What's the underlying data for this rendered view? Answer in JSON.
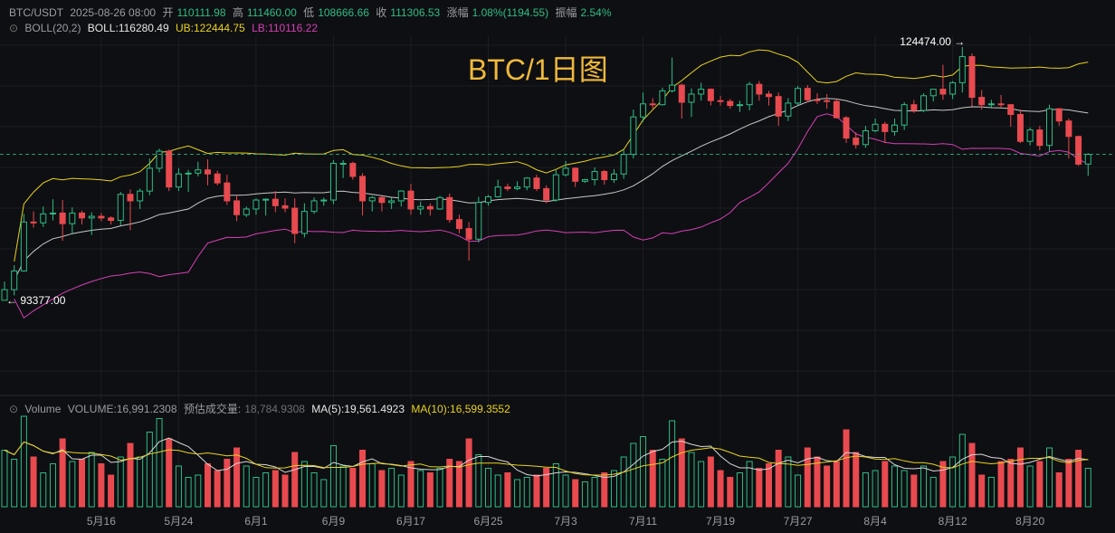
{
  "chart_data": {
    "type": "candlestick",
    "header": {
      "symbol": "BTC/USDT",
      "time": "2025-08-26 08:00",
      "open_label": "开",
      "open": "110111.98",
      "high_label": "高",
      "high": "111460.00",
      "low_label": "低",
      "low": "108666.66",
      "close_label": "收",
      "close": "111306.53",
      "change_label": "涨幅",
      "change": "1.08%(1194.55)",
      "amplitude_label": "振幅",
      "amplitude": "2.54%"
    },
    "boll_header": {
      "name": "BOLL(20,2)",
      "mid": "BOLL:116280.49",
      "ub": "UB:122444.75",
      "lb": "LB:110116.22",
      "period": 20,
      "width": 2,
      "mid_color": "#c8c8c8",
      "ub_color": "#e8d21d",
      "lb_color": "#d63fb7"
    },
    "volume_header": {
      "name": "Volume",
      "volume": "VOLUME:16,991.2308",
      "estimate_label": "预估成交量:",
      "estimate": "18,784.9308",
      "ma5": "MA(5):19,561.4923",
      "ma10": "MA(10):16,599.3552",
      "ma5_period": 5,
      "ma10_period": 10,
      "ma5_color": "#d8d8d8",
      "ma10_color": "#e8d21d"
    },
    "watermark": "BTC/1日图",
    "annotations": {
      "high": "124474.00 →",
      "low": "← 93377.00"
    },
    "up_color": "#2ebd85",
    "down_color": "#e84a4f",
    "categories": [
      null,
      null,
      null,
      null,
      null,
      null,
      null,
      null,
      null,
      null,
      "5月16",
      null,
      null,
      null,
      null,
      null,
      null,
      null,
      "5月24",
      null,
      null,
      null,
      null,
      null,
      null,
      null,
      "6月1",
      null,
      null,
      null,
      null,
      null,
      null,
      null,
      "6月9",
      null,
      null,
      null,
      null,
      null,
      null,
      null,
      "6月17",
      null,
      null,
      null,
      null,
      null,
      null,
      null,
      "6月25",
      null,
      null,
      null,
      null,
      null,
      null,
      null,
      "7月3",
      null,
      null,
      null,
      null,
      null,
      null,
      null,
      "7月11",
      null,
      null,
      null,
      null,
      null,
      null,
      null,
      "7月19",
      null,
      null,
      null,
      null,
      null,
      null,
      null,
      "7月27",
      null,
      null,
      null,
      null,
      null,
      null,
      null,
      "8月4",
      null,
      null,
      null,
      null,
      null,
      null,
      null,
      "8月12",
      null,
      null,
      null,
      null,
      null,
      null,
      null,
      "8月20",
      null,
      null,
      null,
      null,
      null,
      null
    ],
    "open": [
      93400,
      94700,
      97000,
      103000,
      102900,
      104000,
      104100,
      102800,
      104100,
      103500,
      103700,
      103500,
      103200,
      106400,
      105600,
      106800,
      109600,
      111700,
      107300,
      108900,
      109000,
      109400,
      108900,
      107800,
      105600,
      103900,
      104600,
      105700,
      105800,
      105000,
      104700,
      101600,
      104300,
      105600,
      105700,
      110200,
      110200,
      108600,
      105600,
      106000,
      105400,
      105600,
      106800,
      104600,
      104900,
      104600,
      106000,
      103300,
      102200,
      100900,
      105400,
      106100,
      107300,
      107100,
      107300,
      108400,
      107100,
      105700,
      108800,
      109600,
      108000,
      108200,
      109200,
      108200,
      108900,
      111300,
      115900,
      117500,
      117400,
      119100,
      119800,
      117700,
      118700,
      119300,
      117900,
      117800,
      117300,
      117400,
      119900,
      118700,
      118400,
      116000,
      117600,
      119400,
      118000,
      117900,
      117800,
      115800,
      113300,
      112500,
      114200,
      115000,
      114100,
      114900,
      117400,
      116700,
      118500,
      119300,
      118700,
      120100,
      123300,
      118300,
      117400,
      117500,
      117400,
      116200,
      112900,
      114300,
      112400,
      116900,
      115400,
      113500,
      110111.98
    ],
    "high": [
      95700,
      97700,
      104000,
      104300,
      104900,
      105800,
      105700,
      104800,
      104400,
      104200,
      104100,
      103700,
      106700,
      107000,
      107100,
      110800,
      112000,
      111900,
      109600,
      109400,
      110400,
      110700,
      109300,
      108800,
      106300,
      104900,
      105900,
      105900,
      106800,
      105900,
      105900,
      105300,
      106000,
      106000,
      110600,
      110600,
      110400,
      109000,
      106200,
      106200,
      106000,
      106900,
      107700,
      105500,
      105300,
      106200,
      106500,
      103900,
      103000,
      106100,
      106300,
      108200,
      107700,
      108000,
      108500,
      108800,
      107500,
      109400,
      110500,
      109700,
      108300,
      109700,
      109400,
      109500,
      111900,
      116800,
      118900,
      118200,
      119500,
      123200,
      120000,
      119400,
      120100,
      119400,
      118500,
      118100,
      117900,
      120200,
      120300,
      119100,
      118900,
      118200,
      119700,
      119800,
      118800,
      118700,
      118100,
      116000,
      114000,
      114800,
      115700,
      115300,
      115700,
      117700,
      118000,
      118800,
      119300,
      122300,
      120300,
      124474,
      123700,
      119200,
      118000,
      118600,
      117500,
      116800,
      114600,
      114800,
      117400,
      117000,
      115700,
      113600,
      111460
    ],
    "low": [
      93377,
      94000,
      96900,
      102300,
      102400,
      103200,
      100700,
      101500,
      102700,
      101400,
      103100,
      102700,
      102600,
      102000,
      104600,
      106300,
      109100,
      106800,
      106800,
      106700,
      108600,
      107500,
      107500,
      105100,
      103100,
      103600,
      103900,
      103800,
      104200,
      104200,
      100400,
      101100,
      104000,
      105000,
      105200,
      108400,
      108200,
      103800,
      104300,
      104300,
      104600,
      104900,
      103900,
      103900,
      103800,
      104500,
      102900,
      101600,
      98260,
      100500,
      105000,
      106000,
      106800,
      106900,
      106900,
      106800,
      105300,
      105500,
      108600,
      107300,
      107800,
      107500,
      107600,
      107800,
      108300,
      110800,
      115300,
      116900,
      117300,
      118900,
      115700,
      115900,
      117900,
      117300,
      117300,
      116900,
      116500,
      116700,
      117900,
      117300,
      114800,
      115400,
      117300,
      117700,
      117500,
      116900,
      115700,
      112700,
      112000,
      112100,
      114000,
      112700,
      113600,
      114300,
      116400,
      116500,
      117800,
      118000,
      118100,
      118900,
      117200,
      116800,
      117100,
      117100,
      114700,
      112700,
      112400,
      111800,
      111700,
      114800,
      110800,
      109900,
      108666.66
    ],
    "close": [
      94700,
      97000,
      103000,
      102900,
      104000,
      104100,
      102800,
      104100,
      103500,
      103700,
      103500,
      103200,
      106400,
      105600,
      106800,
      109600,
      111700,
      107300,
      108900,
      109000,
      109400,
      108900,
      107800,
      105600,
      103900,
      104600,
      105700,
      105800,
      105000,
      104700,
      101600,
      104300,
      105600,
      105700,
      110200,
      110200,
      108600,
      105600,
      106000,
      105400,
      105600,
      106800,
      104600,
      104900,
      104600,
      106000,
      103300,
      102200,
      100900,
      105400,
      106100,
      107300,
      107100,
      107300,
      108400,
      107100,
      105700,
      108800,
      109600,
      108000,
      108200,
      109200,
      108200,
      108900,
      111300,
      115900,
      117500,
      117400,
      119100,
      119800,
      117700,
      118700,
      119300,
      117900,
      117800,
      117300,
      117400,
      119900,
      118700,
      118400,
      116000,
      117600,
      119400,
      118000,
      117900,
      117800,
      115800,
      113300,
      112500,
      114200,
      115000,
      114100,
      114900,
      117400,
      116700,
      118500,
      119300,
      118700,
      120100,
      123300,
      118300,
      117400,
      117500,
      117400,
      116200,
      112900,
      114300,
      112400,
      116900,
      115400,
      113500,
      110100,
      111306.53
    ],
    "volume": [
      25000,
      21000,
      40000,
      22000,
      15000,
      19000,
      30000,
      20000,
      21000,
      24000,
      19000,
      14000,
      22000,
      28000,
      22000,
      33000,
      39000,
      30000,
      18000,
      13000,
      14000,
      19000,
      16000,
      21000,
      26000,
      18000,
      13000,
      15000,
      16000,
      14000,
      24000,
      20000,
      15000,
      12000,
      27000,
      18000,
      17000,
      25000,
      19000,
      16000,
      17000,
      14000,
      20000,
      16000,
      15000,
      17000,
      21000,
      20000,
      30000,
      23000,
      17000,
      14000,
      15000,
      12000,
      13000,
      14000,
      17000,
      19000,
      14000,
      12000,
      11000,
      13000,
      15000,
      16000,
      22000,
      28000,
      31000,
      25000,
      21000,
      38000,
      30000,
      24000,
      20000,
      22000,
      16000,
      13000,
      15000,
      20000,
      17000,
      19000,
      25000,
      22000,
      14000,
      26000,
      22000,
      18000,
      20000,
      34000,
      24000,
      15000,
      16000,
      20000,
      18000,
      16000,
      14000,
      18000,
      13000,
      20000,
      22000,
      32000,
      28000,
      14000,
      13000,
      20000,
      21000,
      26000,
      18000,
      20000,
      26000,
      15000,
      21000,
      25000,
      16991.2308
    ]
  }
}
